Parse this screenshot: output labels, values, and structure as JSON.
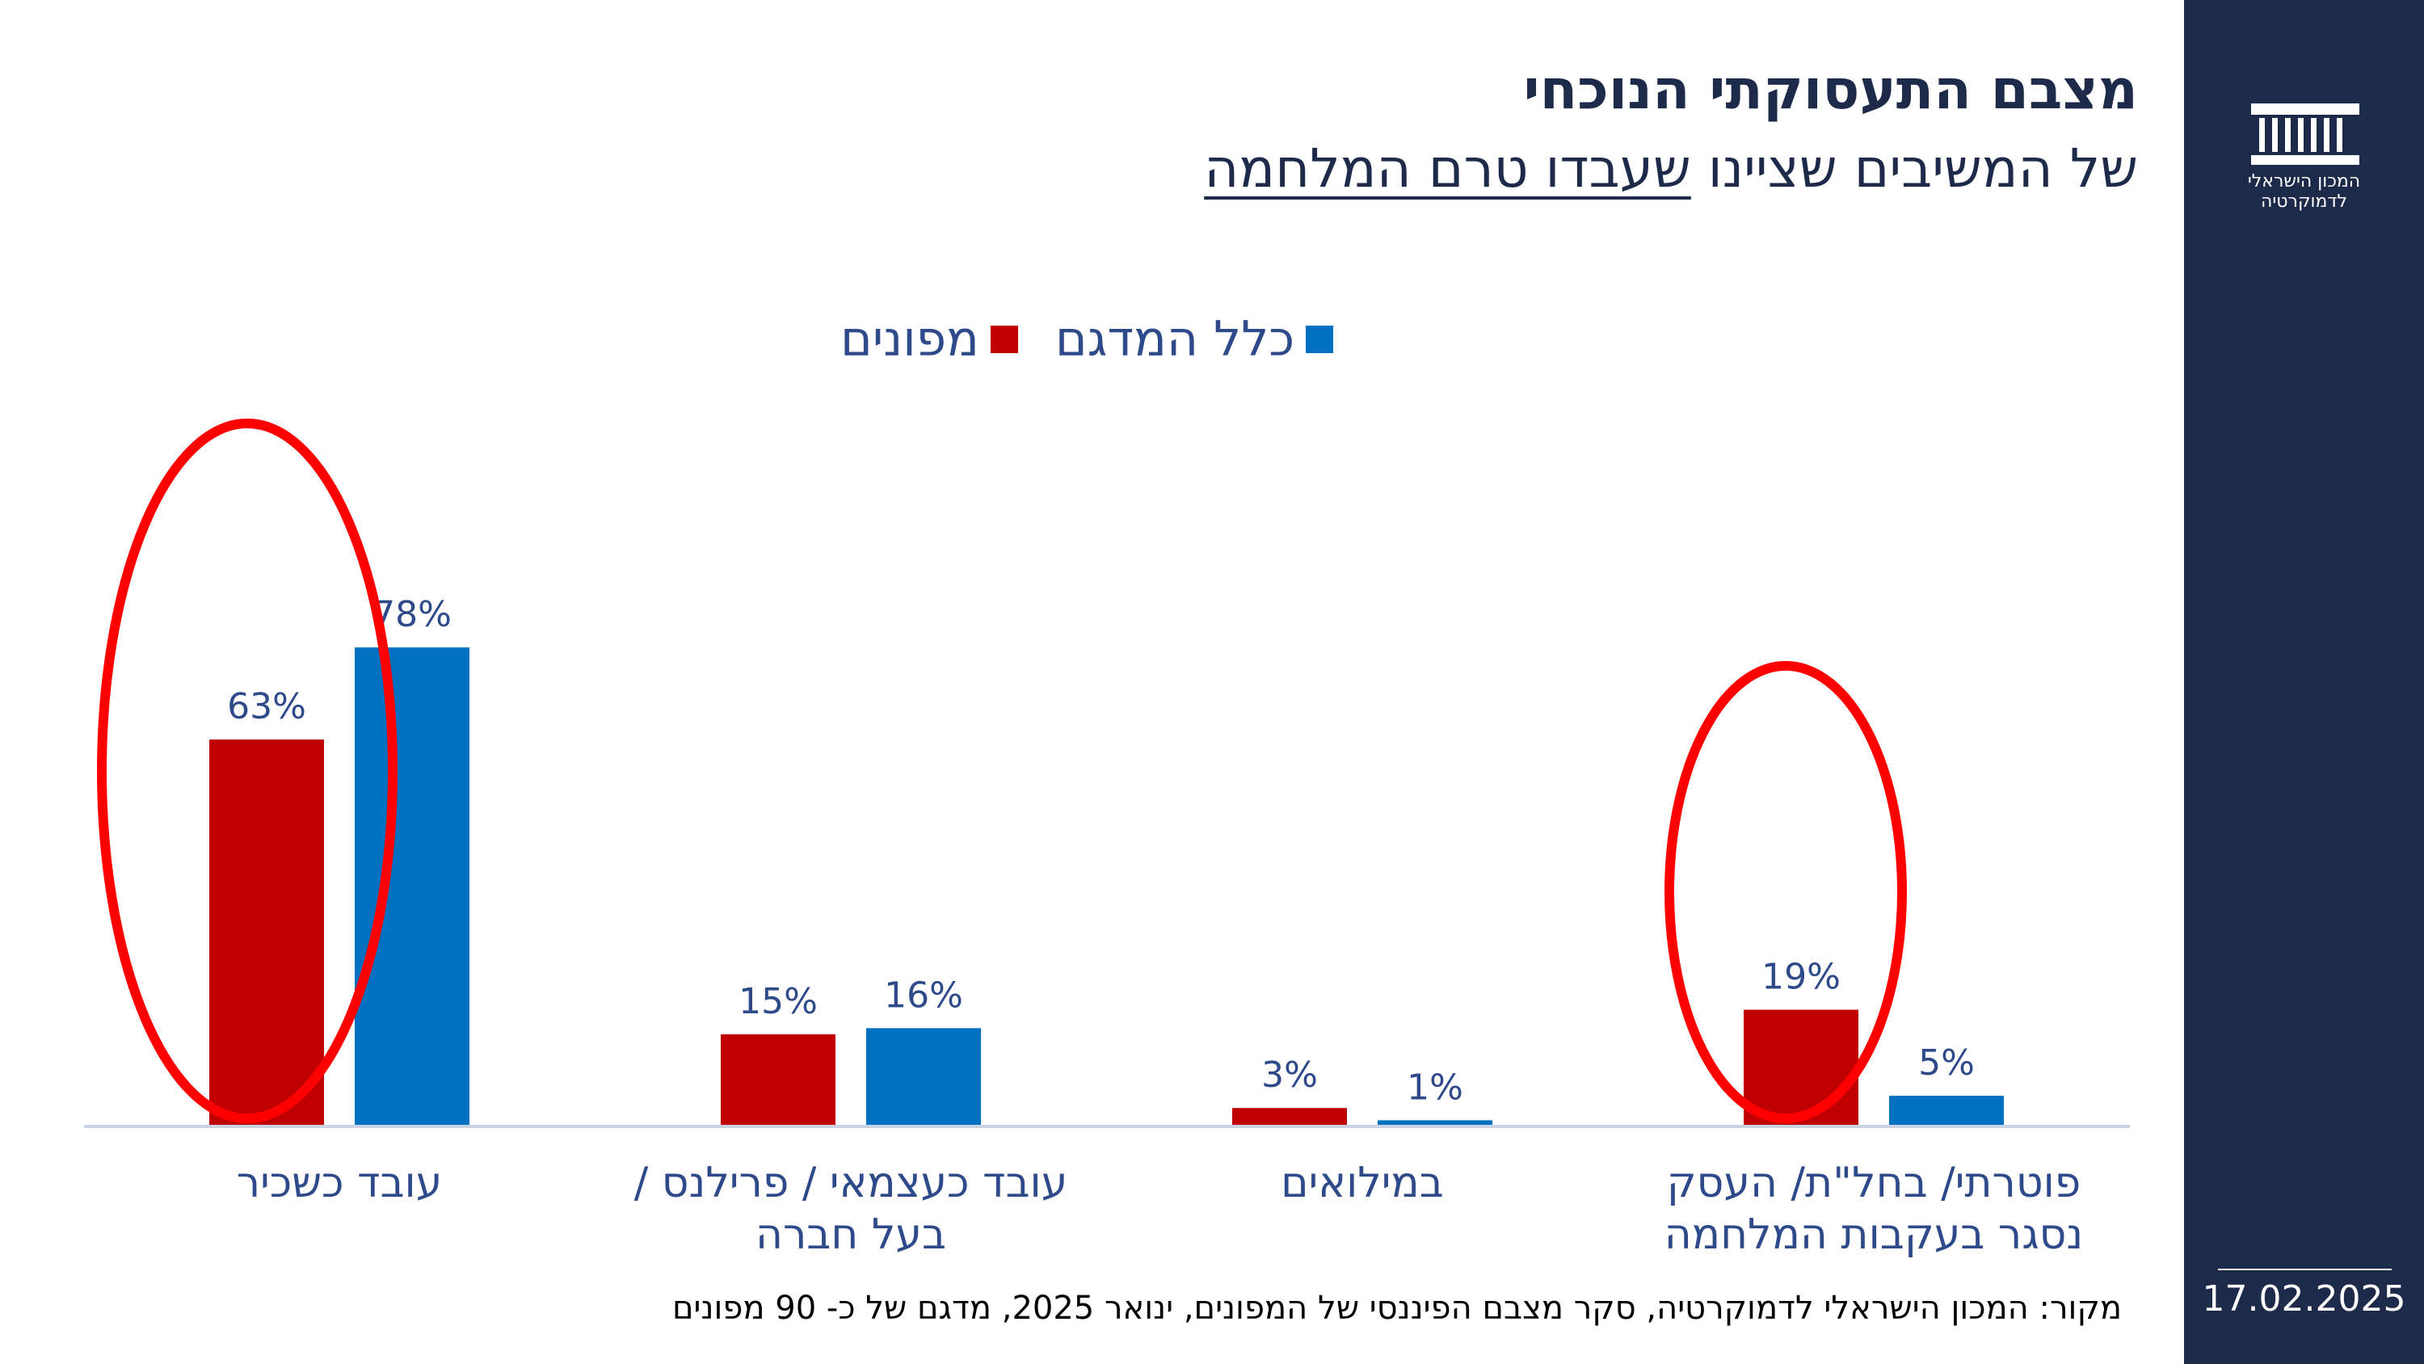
{
  "header": {
    "title": "מצבם התעסוקתי הנוכחי",
    "subtitle_plain": "של המשיבים שציינו ",
    "subtitle_underlined": "שעבדו טרם המלחמה"
  },
  "sidebar": {
    "logo_text_line1": "המכון הישראלי",
    "logo_text_line2": "לדמוקרטיה",
    "date": "17.02.2025"
  },
  "footer": {
    "source": "מקור: המכון הישראלי לדמוקרטיה,  סקר מצבם הפיננסי של המפונים, ינואר 2025, מדגם של כ- 90 מפונים"
  },
  "chart_data": {
    "type": "bar",
    "categories": [
      "עובד כשכיר",
      "עובד כעצמאי / פרילנס / בעל חברה",
      "במילואים",
      "פוטרתי/ בחל\"ת/ העסק נסגר בעקבות המלחמה"
    ],
    "category_lines": [
      [
        "עובד כשכיר"
      ],
      [
        "עובד כעצמאי / פרילנס /",
        "בעל חברה"
      ],
      [
        "במילואים"
      ],
      [
        "פוטרתי/ בחל\"ת/ העסק",
        "נסגר בעקבות המלחמה"
      ]
    ],
    "series": [
      {
        "name": "מפונים",
        "color": "#c00000",
        "values": [
          63,
          15,
          3,
          19
        ],
        "labels": [
          "63%",
          "15%",
          "3%",
          "19%"
        ]
      },
      {
        "name": "כלל המדגם",
        "color": "#0070c0",
        "values": [
          78,
          16,
          1,
          5
        ],
        "labels": [
          "78%",
          "16%",
          "1%",
          "5%"
        ]
      }
    ],
    "unit": "%",
    "ylim": [
      0,
      100
    ],
    "grid": false,
    "legend_position": "top-center",
    "highlighted_categories": [
      0,
      3
    ],
    "highlight_color": "#ff0000"
  }
}
